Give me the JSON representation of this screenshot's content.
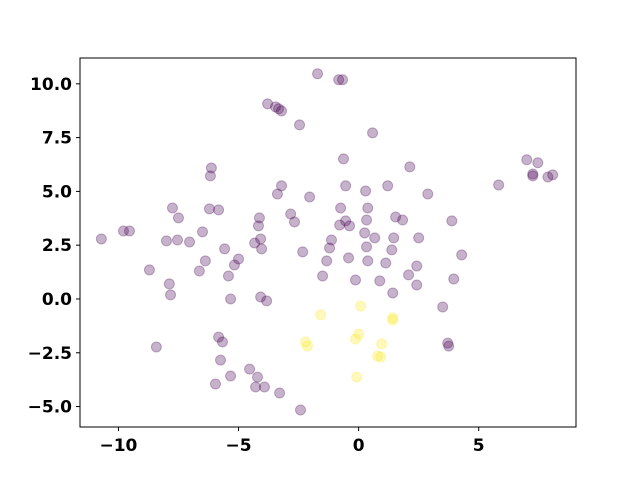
{
  "chart_data": {
    "type": "scatter",
    "title": "",
    "xlabel": "",
    "ylabel": "",
    "xlim": [
      -11.6,
      9.05
    ],
    "ylim": [
      -5.95,
      11.2
    ],
    "grid": false,
    "legend": "none",
    "xticks": [
      -10,
      -5,
      0,
      5
    ],
    "xtick_labels": [
      "−10",
      "−5",
      "0",
      "5"
    ],
    "yticks": [
      -5,
      -2.5,
      0,
      2.5,
      5,
      7.5,
      10
    ],
    "ytick_labels": [
      "−5.0",
      "−2.5",
      "0.0",
      "2.5",
      "5.0",
      "7.5",
      "10.0"
    ],
    "marker_alpha": 0.3,
    "series": [
      {
        "color": "#440154",
        "points": [
          [
            -1.71,
            10.47
          ],
          [
            -0.83,
            10.19
          ],
          [
            -0.67,
            10.19
          ],
          [
            -3.79,
            9.07
          ],
          [
            -3.46,
            8.93
          ],
          [
            -3.33,
            8.84
          ],
          [
            -3.21,
            8.74
          ],
          [
            -2.46,
            8.09
          ],
          [
            0.58,
            7.72
          ],
          [
            -6.13,
            6.09
          ],
          [
            -6.17,
            5.72
          ],
          [
            -0.63,
            6.51
          ],
          [
            2.13,
            6.14
          ],
          [
            7.0,
            6.47
          ],
          [
            7.46,
            6.33
          ],
          [
            7.25,
            5.81
          ],
          [
            7.25,
            5.72
          ],
          [
            7.88,
            5.67
          ],
          [
            8.08,
            5.77
          ],
          [
            5.83,
            5.3
          ],
          [
            -0.54,
            5.26
          ],
          [
            -2.04,
            4.74
          ],
          [
            0.29,
            5.02
          ],
          [
            1.21,
            5.26
          ],
          [
            2.88,
            4.88
          ],
          [
            -3.21,
            5.26
          ],
          [
            -3.38,
            4.88
          ],
          [
            -7.75,
            4.23
          ],
          [
            -7.5,
            3.77
          ],
          [
            -6.21,
            4.19
          ],
          [
            -5.83,
            4.14
          ],
          [
            -0.75,
            4.23
          ],
          [
            0.38,
            4.23
          ],
          [
            -0.54,
            3.63
          ],
          [
            -0.79,
            3.44
          ],
          [
            -0.38,
            3.4
          ],
          [
            0.33,
            3.67
          ],
          [
            1.54,
            3.81
          ],
          [
            1.83,
            3.67
          ],
          [
            3.88,
            3.63
          ],
          [
            -4.13,
            3.77
          ],
          [
            -4.17,
            3.4
          ],
          [
            -2.83,
            3.95
          ],
          [
            -2.67,
            3.58
          ],
          [
            -9.79,
            3.16
          ],
          [
            -9.54,
            3.16
          ],
          [
            -6.5,
            3.12
          ],
          [
            -4.08,
            2.79
          ],
          [
            -10.71,
            2.79
          ],
          [
            -8.0,
            2.7
          ],
          [
            -7.54,
            2.74
          ],
          [
            -7.04,
            2.65
          ],
          [
            -4.33,
            2.6
          ],
          [
            0.25,
            3.07
          ],
          [
            0.67,
            2.84
          ],
          [
            1.46,
            2.84
          ],
          [
            2.5,
            2.84
          ],
          [
            -1.13,
            2.74
          ],
          [
            -5.58,
            2.33
          ],
          [
            -4.04,
            2.33
          ],
          [
            -2.33,
            2.19
          ],
          [
            -1.21,
            2.37
          ],
          [
            0.33,
            2.42
          ],
          [
            1.38,
            2.28
          ],
          [
            4.29,
            2.05
          ],
          [
            -1.33,
            1.77
          ],
          [
            -6.38,
            1.77
          ],
          [
            -5.0,
            1.86
          ],
          [
            -5.17,
            1.58
          ],
          [
            -0.42,
            1.91
          ],
          [
            0.38,
            1.77
          ],
          [
            1.13,
            1.67
          ],
          [
            2.42,
            1.53
          ],
          [
            -8.71,
            1.35
          ],
          [
            -6.63,
            1.3
          ],
          [
            -1.5,
            1.07
          ],
          [
            -5.42,
            1.07
          ],
          [
            -0.13,
            0.88
          ],
          [
            0.88,
            0.84
          ],
          [
            2.08,
            1.12
          ],
          [
            2.42,
            0.65
          ],
          [
            3.96,
            0.93
          ],
          [
            -7.88,
            0.7
          ],
          [
            -7.83,
            0.19
          ],
          [
            -5.33,
            0.0
          ],
          [
            -4.08,
            0.09
          ],
          [
            -3.83,
            -0.09
          ],
          [
            1.42,
            0.28
          ],
          [
            3.5,
            -0.37
          ],
          [
            -5.83,
            -1.77
          ],
          [
            -5.67,
            -2.0
          ],
          [
            -8.42,
            -2.23
          ],
          [
            -5.75,
            -2.84
          ],
          [
            -4.54,
            -3.26
          ],
          [
            -5.33,
            -3.58
          ],
          [
            -4.21,
            -3.63
          ],
          [
            -5.96,
            -3.95
          ],
          [
            -4.29,
            -4.09
          ],
          [
            -3.92,
            -4.09
          ],
          [
            -3.29,
            -4.37
          ],
          [
            -2.42,
            -5.16
          ],
          [
            3.71,
            -2.05
          ],
          [
            3.75,
            -2.19
          ]
        ]
      },
      {
        "color": "#fde725",
        "points": [
          [
            0.08,
            -0.33
          ],
          [
            -1.58,
            -0.74
          ],
          [
            1.42,
            -0.88
          ],
          [
            1.42,
            -0.98
          ],
          [
            -2.21,
            -2.0
          ],
          [
            -2.13,
            -2.19
          ],
          [
            0.0,
            -1.63
          ],
          [
            -0.13,
            -1.86
          ],
          [
            0.96,
            -2.09
          ],
          [
            0.79,
            -2.65
          ],
          [
            0.92,
            -2.7
          ],
          [
            -0.08,
            -3.63
          ]
        ]
      }
    ]
  }
}
